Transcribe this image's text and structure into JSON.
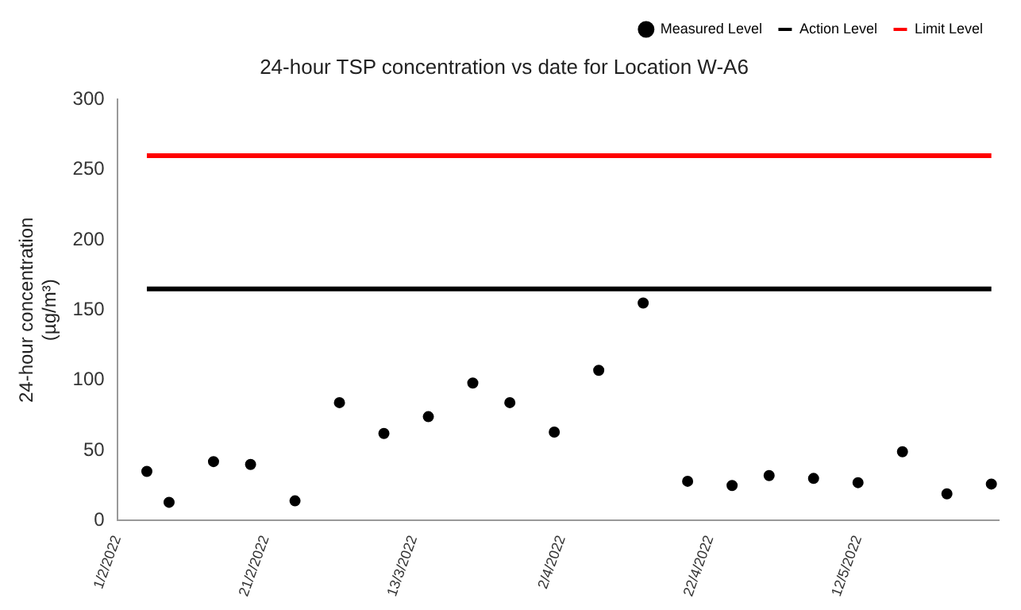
{
  "chart_data": {
    "type": "scatter",
    "title": "24-hour TSP concentration vs date for Location W-A6",
    "ylabel": "24-hour concentration (µg/m³)",
    "x": [
      "2022-02-05",
      "2022-02-08",
      "2022-02-14",
      "2022-02-19",
      "2022-02-25",
      "2022-03-03",
      "2022-03-09",
      "2022-03-15",
      "2022-03-21",
      "2022-03-26",
      "2022-04-01",
      "2022-04-07",
      "2022-04-13",
      "2022-04-19",
      "2022-04-25",
      "2022-04-30",
      "2022-05-06",
      "2022-05-12",
      "2022-05-18",
      "2022-05-24",
      "2022-05-30"
    ],
    "series": [
      {
        "name": "Measured Level",
        "color": "#000000",
        "values": [
          35,
          13,
          42,
          40,
          14,
          84,
          62,
          74,
          98,
          84,
          63,
          107,
          155,
          28,
          25,
          32,
          30,
          27,
          49,
          19,
          26
        ]
      },
      {
        "name": "Action Level",
        "type": "line",
        "color": "#000000",
        "x": [
          "2022-02-05",
          "2022-05-30"
        ],
        "values": [
          165,
          165
        ],
        "marker": "none"
      },
      {
        "name": "Limit Level",
        "type": "line",
        "color": "#ff0000",
        "x": [
          "2022-02-05",
          "2022-05-30"
        ],
        "values": [
          260,
          260
        ],
        "marker": "none"
      }
    ],
    "xlim": [
      "2022-02-01",
      "2022-05-31"
    ],
    "xticks": [
      {
        "value": "2022-02-01",
        "label": "1/2/2022"
      },
      {
        "value": "2022-02-21",
        "label": "21/2/2022"
      },
      {
        "value": "2022-03-13",
        "label": "13/3/2022"
      },
      {
        "value": "2022-04-02",
        "label": "2/4/2022"
      },
      {
        "value": "2022-04-22",
        "label": "22/4/2022"
      },
      {
        "value": "2022-05-12",
        "label": "12/5/2022"
      }
    ],
    "ylim": [
      0,
      300
    ],
    "yticks": [
      0,
      50,
      100,
      150,
      200,
      250,
      300
    ],
    "grid": false,
    "legend": "top right",
    "marker": "circle"
  }
}
